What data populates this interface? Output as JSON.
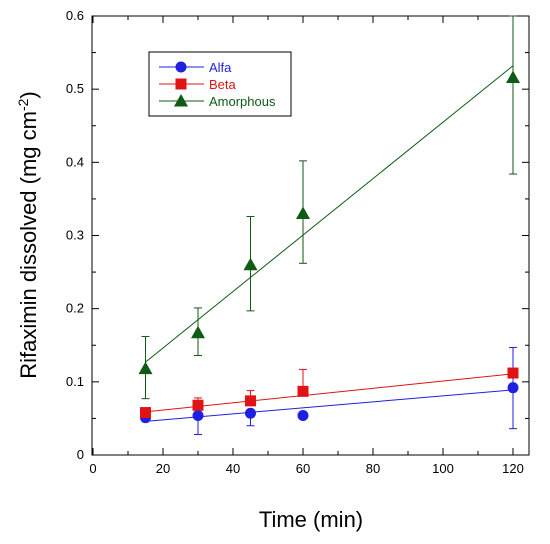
{
  "chart_data": {
    "type": "scatter",
    "xlabel": "Time (min)",
    "ylabel_main": "Rifaximin dissolved (mg cm",
    "ylabel_sup": "-2",
    "ylabel_tail": ")",
    "xlim": [
      0,
      125
    ],
    "ylim": [
      0,
      0.6
    ],
    "xticks": [
      0,
      20,
      40,
      60,
      80,
      100,
      120
    ],
    "xtick_labels": [
      "0",
      "20",
      "40",
      "60",
      "80",
      "100",
      "120"
    ],
    "yticks": [
      0,
      0.1,
      0.2,
      0.3,
      0.4,
      0.5,
      0.6
    ],
    "ytick_labels": [
      "0",
      "0.1",
      "0.2",
      "0.3",
      "0.4",
      "0.5",
      "0.6"
    ],
    "grid": false,
    "legend_position": "top-left",
    "series": [
      {
        "name": "Alfa",
        "color": "#1f1fdf",
        "marker": "circle",
        "x": [
          15,
          30,
          45,
          60,
          120
        ],
        "y": [
          0.051,
          0.054,
          0.057,
          0.054,
          0.092
        ],
        "err_up": [
          0.0,
          0.0,
          0.0,
          0.0,
          0.055
        ],
        "err_down": [
          0.0,
          0.026,
          0.017,
          0.0,
          0.056
        ],
        "fit": [
          [
            15,
            0.046
          ],
          [
            120,
            0.089
          ]
        ]
      },
      {
        "name": "Beta",
        "color": "#e01414",
        "marker": "square",
        "x": [
          15,
          30,
          45,
          60,
          120
        ],
        "y": [
          0.058,
          0.068,
          0.074,
          0.087,
          0.112
        ],
        "err_up": [
          0.0,
          0.01,
          0.014,
          0.03,
          0.0
        ],
        "err_down": [
          0.0,
          0.0,
          0.0,
          0.0,
          0.0
        ],
        "fit": [
          [
            15,
            0.059
          ],
          [
            120,
            0.111
          ]
        ]
      },
      {
        "name": "Amorphous",
        "color": "#0f5a14",
        "marker": "triangle",
        "x": [
          15,
          30,
          45,
          60,
          120
        ],
        "y": [
          0.118,
          0.167,
          0.26,
          0.33,
          0.516
        ],
        "err_up": [
          0.044,
          0.034,
          0.066,
          0.072,
          0.084
        ],
        "err_down": [
          0.041,
          0.031,
          0.063,
          0.068,
          0.132
        ],
        "fit": [
          [
            15,
            0.127
          ],
          [
            120,
            0.532
          ]
        ]
      }
    ]
  }
}
